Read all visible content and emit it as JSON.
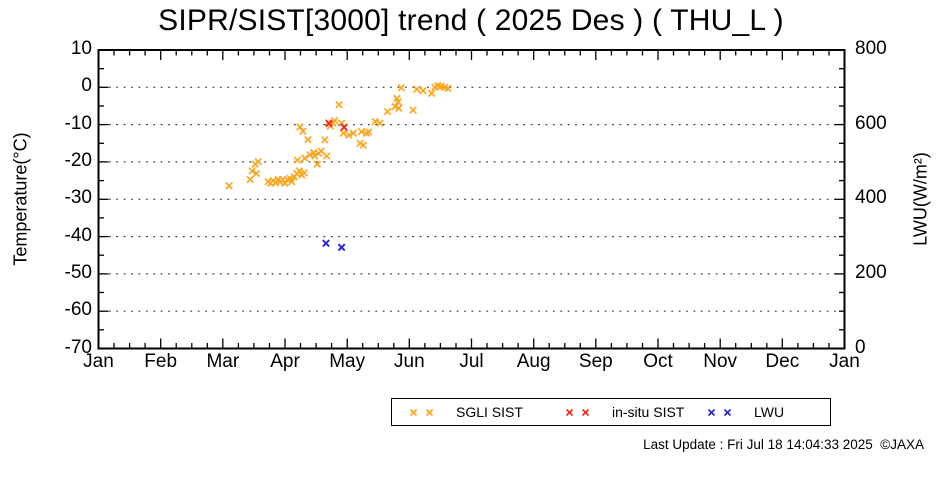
{
  "title": "SIPR/SIST[3000] trend ( 2025 Des ) ( THU_L )",
  "footer": "Last Update : Fri Jul 18 14:04:33 2025  ©JAXA",
  "colors": {
    "sgli": "#ffa318",
    "insitu": "#f3281d",
    "lwu": "#2a23d8",
    "grid": "#3c3c3c",
    "frame": "#000000"
  },
  "chart_data": {
    "type": "scatter",
    "title": "SIPR/SIST[3000] trend ( 2025 Des ) ( THU_L )",
    "ylabel_left": "Temperature(°C)",
    "ylabel_right": "LWU(W/m²)",
    "x_axis": {
      "tick_labels": [
        "Jan",
        "Feb",
        "Mar",
        "Apr",
        "May",
        "Jun",
        "Jul",
        "Aug",
        "Sep",
        "Oct",
        "Nov",
        "Dec",
        "Jan"
      ],
      "range_months": [
        0,
        12
      ],
      "minor_ticks_per_month": 4
    },
    "y_left": {
      "label": "Temperature(°C)",
      "range": [
        -70,
        10
      ],
      "ticks": [
        10,
        0,
        -10,
        -20,
        -30,
        -40,
        -50,
        -60,
        -70
      ],
      "minor_step": 5
    },
    "y_right": {
      "label": "LWU(W/m²)",
      "range": [
        0,
        800
      ],
      "ticks": [
        800,
        600,
        400,
        200,
        0
      ],
      "minor_step": 50,
      "major_step": 200
    },
    "grid_temps": [
      0,
      -10,
      -20,
      -30,
      -40,
      -50,
      -60
    ],
    "legend_position": "below-right",
    "series": [
      {
        "name": "SGLI SIST",
        "color_key": "sgli",
        "axis": "left",
        "marker": "x",
        "points": [
          [
            2.1,
            -26.4
          ],
          [
            2.44,
            -24.7
          ],
          [
            2.47,
            -22.4
          ],
          [
            2.52,
            -20.6
          ],
          [
            2.57,
            -19.9
          ],
          [
            2.54,
            -23.1
          ],
          [
            2.73,
            -25.3
          ],
          [
            2.77,
            -25.7
          ],
          [
            2.81,
            -25.0
          ],
          [
            2.85,
            -25.6
          ],
          [
            2.89,
            -24.7
          ],
          [
            2.92,
            -25.3
          ],
          [
            2.96,
            -24.7
          ],
          [
            3.0,
            -25.7
          ],
          [
            3.04,
            -24.8
          ],
          [
            3.08,
            -24.4
          ],
          [
            3.11,
            -25.3
          ],
          [
            3.15,
            -24.0
          ],
          [
            3.19,
            -23.1
          ],
          [
            3.23,
            -22.4
          ],
          [
            3.27,
            -23.5
          ],
          [
            3.31,
            -22.9
          ],
          [
            3.2,
            -19.5
          ],
          [
            3.32,
            -19.0
          ],
          [
            3.4,
            -18.1
          ],
          [
            3.46,
            -17.5
          ],
          [
            3.48,
            -18.4
          ],
          [
            3.54,
            -17.7
          ],
          [
            3.58,
            -17.1
          ],
          [
            3.52,
            -20.6
          ],
          [
            3.67,
            -18.4
          ],
          [
            3.24,
            -10.6
          ],
          [
            3.29,
            -11.8
          ],
          [
            3.37,
            -14.0
          ],
          [
            3.64,
            -14.1
          ],
          [
            3.7,
            -9.5
          ],
          [
            3.73,
            -10.4
          ],
          [
            3.77,
            -9.6
          ],
          [
            3.8,
            -8.9
          ],
          [
            3.87,
            -4.7
          ],
          [
            3.91,
            -9.6
          ],
          [
            3.94,
            -12.3
          ],
          [
            4.03,
            -12.8
          ],
          [
            4.1,
            -12.3
          ],
          [
            4.21,
            -15.0
          ],
          [
            4.26,
            -15.5
          ],
          [
            4.23,
            -11.9
          ],
          [
            4.31,
            -12.3
          ],
          [
            4.35,
            -12.0
          ],
          [
            4.45,
            -9.2
          ],
          [
            4.53,
            -9.6
          ],
          [
            4.65,
            -6.5
          ],
          [
            4.77,
            -5.2
          ],
          [
            4.82,
            -3.9
          ],
          [
            4.8,
            -3.0
          ],
          [
            4.87,
            -0.1
          ],
          [
            4.83,
            -5.6
          ],
          [
            5.06,
            -6.1
          ],
          [
            5.12,
            -0.5
          ],
          [
            5.22,
            -0.9
          ],
          [
            5.36,
            -1.6
          ],
          [
            5.41,
            0.0
          ],
          [
            5.46,
            0.4
          ],
          [
            5.51,
            0.3
          ],
          [
            5.57,
            0.0
          ],
          [
            5.62,
            -0.3
          ]
        ]
      },
      {
        "name": "in-situ SIST",
        "color_key": "insitu",
        "axis": "left",
        "marker": "x",
        "points": [
          [
            3.71,
            -9.7
          ],
          [
            3.95,
            -10.7
          ]
        ]
      },
      {
        "name": "LWU",
        "color_key": "lwu",
        "axis": "right",
        "marker": "x",
        "points": [
          [
            3.66,
            282
          ],
          [
            3.91,
            271
          ]
        ]
      }
    ]
  }
}
